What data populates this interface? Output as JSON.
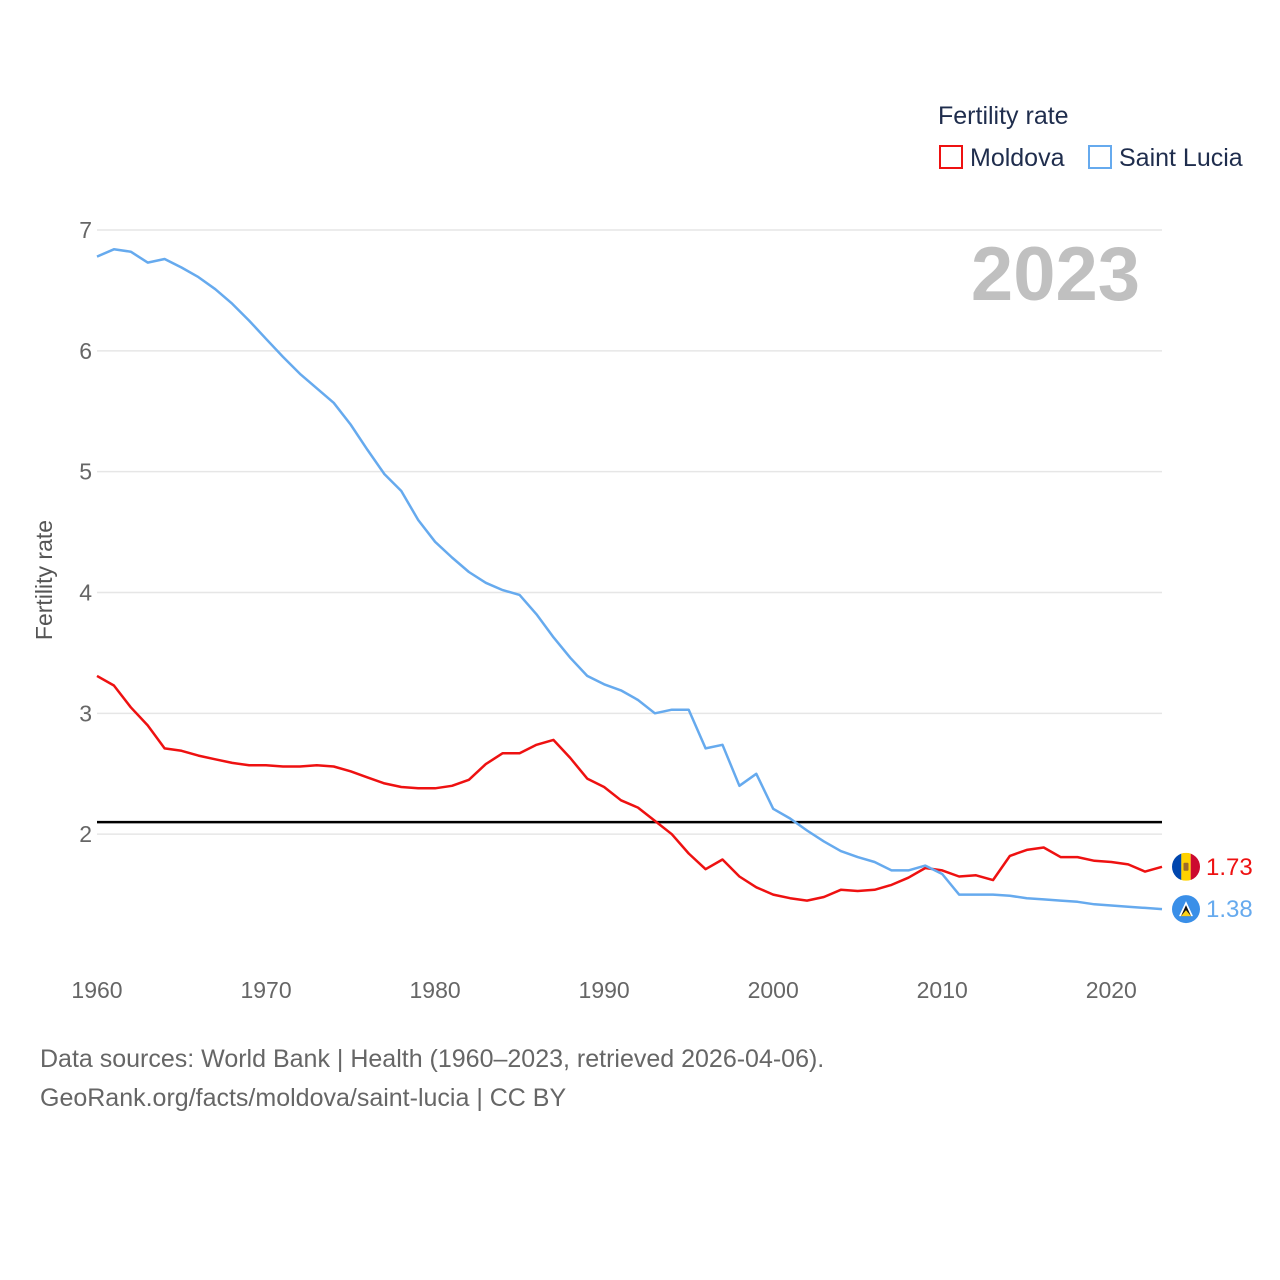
{
  "chart_data": {
    "type": "line",
    "ylabel": "Fertility rate",
    "xlabel": "",
    "xlim": [
      1960,
      2023
    ],
    "ylim": [
      1.0,
      7.0
    ],
    "yticks": [
      2,
      3,
      4,
      5,
      6,
      7
    ],
    "xticks": [
      1960,
      1970,
      1980,
      1990,
      2000,
      2010,
      2020
    ],
    "year_label": "2023",
    "legend": {
      "title": "Fertility rate",
      "position": "top-right"
    },
    "reference_line": {
      "y": 2.1,
      "color": "#000000"
    },
    "x": [
      1960,
      1961,
      1962,
      1963,
      1964,
      1965,
      1966,
      1967,
      1968,
      1969,
      1970,
      1971,
      1972,
      1973,
      1974,
      1975,
      1976,
      1977,
      1978,
      1979,
      1980,
      1981,
      1982,
      1983,
      1984,
      1985,
      1986,
      1987,
      1988,
      1989,
      1990,
      1991,
      1992,
      1993,
      1994,
      1995,
      1996,
      1997,
      1998,
      1999,
      2000,
      2001,
      2002,
      2003,
      2004,
      2005,
      2006,
      2007,
      2008,
      2009,
      2010,
      2011,
      2012,
      2013,
      2014,
      2015,
      2016,
      2017,
      2018,
      2019,
      2020,
      2021,
      2022,
      2023
    ],
    "series": [
      {
        "name": "Moldova",
        "color": "#ee1111",
        "end_label": "1.73",
        "values": [
          3.31,
          3.23,
          3.05,
          2.9,
          2.71,
          2.69,
          2.65,
          2.62,
          2.59,
          2.57,
          2.57,
          2.56,
          2.56,
          2.57,
          2.56,
          2.52,
          2.47,
          2.42,
          2.39,
          2.38,
          2.38,
          2.4,
          2.45,
          2.58,
          2.67,
          2.67,
          2.74,
          2.78,
          2.63,
          2.46,
          2.39,
          2.28,
          2.22,
          2.11,
          2.0,
          1.84,
          1.71,
          1.79,
          1.65,
          1.56,
          1.5,
          1.47,
          1.45,
          1.48,
          1.54,
          1.53,
          1.54,
          1.58,
          1.64,
          1.72,
          1.7,
          1.65,
          1.66,
          1.62,
          1.82,
          1.87,
          1.89,
          1.81,
          1.81,
          1.78,
          1.77,
          1.75,
          1.69,
          1.73
        ]
      },
      {
        "name": "Saint Lucia",
        "color": "#66aaee",
        "end_label": "1.38",
        "values": [
          6.78,
          6.84,
          6.82,
          6.73,
          6.76,
          6.69,
          6.61,
          6.51,
          6.39,
          6.25,
          6.1,
          5.95,
          5.81,
          5.69,
          5.57,
          5.39,
          5.18,
          4.98,
          4.84,
          4.6,
          4.42,
          4.29,
          4.17,
          4.08,
          4.02,
          3.98,
          3.82,
          3.63,
          3.46,
          3.31,
          3.24,
          3.19,
          3.11,
          3.0,
          3.03,
          3.03,
          2.71,
          2.74,
          2.4,
          2.5,
          2.21,
          2.13,
          2.03,
          1.94,
          1.86,
          1.81,
          1.77,
          1.7,
          1.7,
          1.74,
          1.67,
          1.5,
          1.5,
          1.5,
          1.49,
          1.47,
          1.46,
          1.45,
          1.44,
          1.42,
          1.41,
          1.4,
          1.39,
          1.38
        ]
      }
    ]
  },
  "source": {
    "line1": "Data sources: World Bank | Health (1960–2023, retrieved 2026-04-06).",
    "line2": "GeoRank.org/facts/moldova/saint-lucia | CC BY"
  }
}
